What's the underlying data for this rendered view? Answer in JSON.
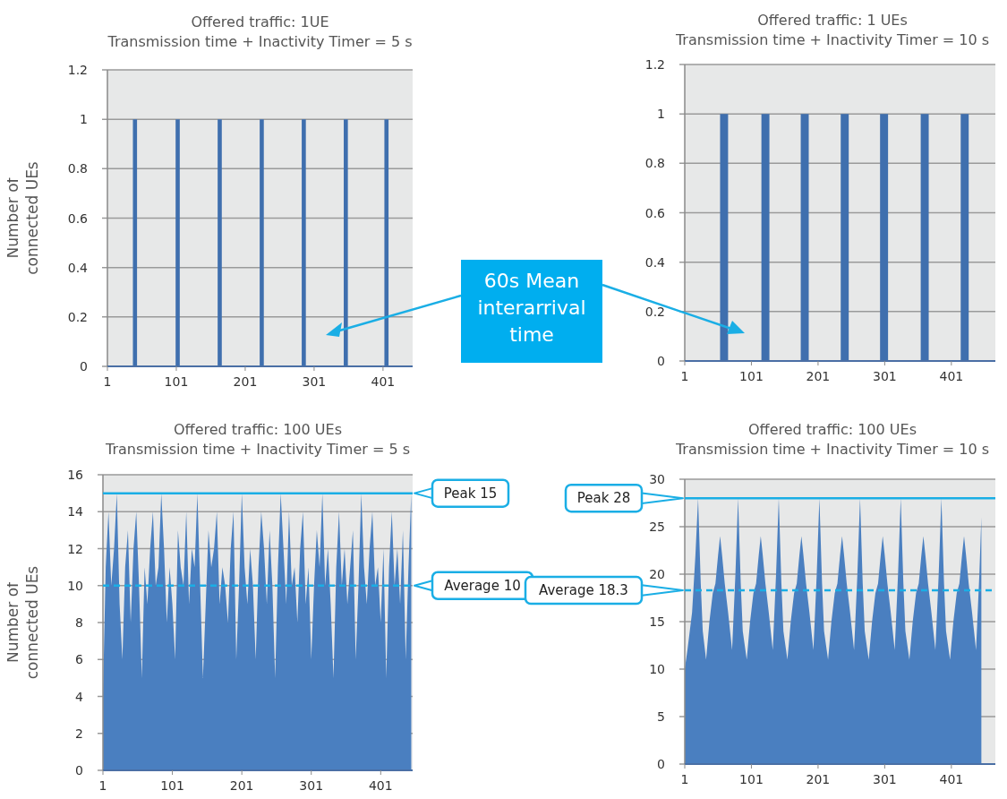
{
  "chart_data": [
    {
      "type": "area",
      "title": "Offered traffic: 1UE",
      "subtitle": "Transmission time + Inactivity Timer = 5 s",
      "ylabel": "Number of connected UEs",
      "xlim": [
        1,
        444
      ],
      "xticks": [
        1,
        101,
        201,
        301,
        401
      ],
      "ylim": [
        0,
        1.2
      ],
      "yticks": [
        0,
        0.2,
        0.4,
        0.6,
        0.8,
        1,
        1.2
      ],
      "grid": "y",
      "annotations": [
        "60s Mean interarrival time"
      ],
      "x": [
        1,
        38,
        38,
        44,
        44,
        100,
        100,
        106,
        106,
        161,
        161,
        167,
        167,
        222,
        222,
        228,
        228,
        283,
        283,
        289,
        289,
        344,
        344,
        350,
        350,
        403,
        403,
        409,
        409,
        444
      ],
      "series": [
        {
          "color": "#3f6fae",
          "values": [
            0,
            0,
            1,
            1,
            0,
            0,
            1,
            1,
            0,
            0,
            1,
            1,
            0,
            0,
            1,
            1,
            0,
            0,
            1,
            1,
            0,
            0,
            1,
            1,
            0,
            0,
            1,
            1,
            0,
            0
          ]
        }
      ]
    },
    {
      "type": "area",
      "title": "Offered traffic: 1 UEs",
      "subtitle": "Transmission time + Inactivity Timer = 10 s",
      "xlim": [
        1,
        467
      ],
      "xticks": [
        1,
        101,
        201,
        301,
        401
      ],
      "ylim": [
        0,
        1.2
      ],
      "yticks": [
        0,
        0.2,
        0.4,
        0.6,
        0.8,
        1,
        1.2
      ],
      "grid": "y",
      "x": [
        1,
        54,
        54,
        66,
        66,
        116,
        116,
        128,
        128,
        175,
        175,
        187,
        187,
        235,
        235,
        247,
        247,
        294,
        294,
        306,
        306,
        355,
        355,
        367,
        367,
        415,
        415,
        427,
        427,
        467
      ],
      "series": [
        {
          "color": "#3f6fae",
          "values": [
            0,
            0,
            1,
            1,
            0,
            0,
            1,
            1,
            0,
            0,
            1,
            1,
            0,
            0,
            1,
            1,
            0,
            0,
            1,
            1,
            0,
            0,
            1,
            1,
            0,
            0,
            1,
            1,
            0,
            0
          ]
        }
      ]
    },
    {
      "type": "area",
      "title": "Offered traffic: 100 UEs",
      "subtitle": "Transmission time + Inactivity Timer = 5 s",
      "ylabel": "Number of connected UEs",
      "xlim": [
        1,
        447
      ],
      "xticks": [
        1,
        101,
        201,
        301,
        401
      ],
      "ylim": [
        0,
        16
      ],
      "yticks": [
        0,
        2,
        4,
        6,
        8,
        10,
        12,
        14,
        16
      ],
      "grid": "y",
      "x": [
        1,
        5,
        9,
        13,
        17,
        21,
        25,
        29,
        33,
        37,
        41,
        45,
        49,
        53,
        57,
        61,
        65,
        69,
        73,
        77,
        81,
        85,
        89,
        93,
        97,
        101,
        105,
        109,
        113,
        117,
        121,
        125,
        129,
        133,
        137,
        141,
        145,
        149,
        153,
        157,
        161,
        165,
        169,
        173,
        177,
        181,
        185,
        189,
        193,
        197,
        201,
        205,
        209,
        213,
        217,
        221,
        225,
        229,
        233,
        237,
        241,
        245,
        249,
        253,
        257,
        261,
        265,
        269,
        273,
        277,
        281,
        285,
        289,
        293,
        297,
        301,
        305,
        309,
        313,
        317,
        321,
        325,
        329,
        333,
        337,
        341,
        345,
        349,
        353,
        357,
        361,
        365,
        369,
        373,
        377,
        381,
        385,
        389,
        393,
        397,
        401,
        405,
        409,
        413,
        417,
        421,
        425,
        429,
        433,
        437,
        441,
        445
      ],
      "series": [
        {
          "color": "#4a7fc0",
          "values": [
            4,
            11,
            14,
            10,
            12,
            15,
            9,
            6,
            11,
            13,
            8,
            12,
            14,
            10,
            5,
            11,
            9,
            12,
            14,
            10,
            11,
            15,
            12,
            8,
            11,
            9,
            6,
            13,
            11,
            10,
            14,
            9,
            12,
            11,
            15,
            10,
            5,
            9,
            13,
            11,
            12,
            14,
            9,
            11,
            10,
            8,
            12,
            14,
            6,
            10,
            15,
            11,
            9,
            12,
            10,
            6,
            11,
            14,
            12,
            9,
            13,
            10,
            5,
            11,
            15,
            12,
            9,
            14,
            10,
            11,
            8,
            12,
            14,
            9,
            11,
            6,
            10,
            13,
            11,
            15,
            10,
            12,
            9,
            5,
            11,
            14,
            10,
            12,
            9,
            11,
            13,
            6,
            10,
            15,
            11,
            9,
            12,
            14,
            10,
            11,
            8,
            12,
            5,
            11,
            14,
            10,
            12,
            9,
            13,
            6,
            11,
            15
          ]
        }
      ],
      "ref_lines": [
        {
          "axis": "y",
          "value": 15,
          "label": "Peak 15",
          "color": "#1aaee5",
          "line_style": "solid"
        },
        {
          "axis": "y",
          "value": 10,
          "label": "Average 10",
          "color": "#1aaee5",
          "line_style": "dashed"
        }
      ]
    },
    {
      "type": "area",
      "title": "Offered traffic: 100 UEs",
      "subtitle": "Transmission time + Inactivity Timer = 10 s",
      "xlim": [
        1,
        467
      ],
      "xticks": [
        1,
        101,
        201,
        301,
        401
      ],
      "ylim": [
        0,
        30
      ],
      "yticks": [
        0,
        5,
        10,
        15,
        20,
        25,
        30
      ],
      "grid": "y",
      "x": [
        1,
        5,
        12,
        17,
        21,
        25,
        28,
        33,
        38,
        43,
        47,
        51,
        54,
        57,
        61,
        66,
        72,
        77,
        81,
        85,
        88,
        94,
        99,
        104,
        108,
        112,
        115,
        118,
        122,
        127,
        133,
        138,
        142,
        146,
        149,
        155,
        160,
        165,
        169,
        173,
        176,
        179,
        183,
        188,
        194,
        199,
        203,
        207,
        210,
        216,
        221,
        226,
        230,
        234,
        237,
        240,
        244,
        249,
        255,
        260,
        264,
        268,
        271,
        277,
        282,
        287,
        291,
        295,
        298,
        301,
        305,
        310,
        316,
        321,
        325,
        329,
        332,
        338,
        343,
        348,
        352,
        356,
        359,
        362,
        366,
        371,
        377,
        382,
        386,
        390,
        393,
        399,
        404,
        409,
        413,
        417,
        420,
        423,
        427,
        432,
        438,
        443,
        446
      ],
      "series": [
        {
          "color": "#4a7fc0",
          "values": [
            10,
            12,
            16,
            22,
            28,
            19,
            14,
            11,
            15,
            18,
            19,
            22,
            24,
            22,
            19,
            16,
            12,
            20,
            28,
            19,
            14,
            11,
            15,
            18,
            19,
            22,
            24,
            22,
            19,
            16,
            12,
            20,
            28,
            19,
            14,
            11,
            15,
            18,
            19,
            22,
            24,
            22,
            19,
            16,
            12,
            20,
            28,
            19,
            14,
            11,
            15,
            18,
            19,
            22,
            24,
            22,
            19,
            16,
            12,
            20,
            28,
            19,
            14,
            11,
            15,
            18,
            19,
            22,
            24,
            22,
            19,
            16,
            12,
            20,
            28,
            19,
            14,
            11,
            15,
            18,
            19,
            22,
            24,
            22,
            19,
            16,
            12,
            20,
            28,
            19,
            14,
            11,
            15,
            18,
            19,
            22,
            24,
            22,
            19,
            16,
            12,
            20,
            26
          ]
        }
      ],
      "ref_lines": [
        {
          "axis": "y",
          "value": 28,
          "label": "Peak 28",
          "color": "#1aaee5",
          "line_style": "solid"
        },
        {
          "axis": "y",
          "value": 18.3,
          "label": "Average 18.3",
          "color": "#1aaee5",
          "line_style": "dashed"
        }
      ]
    }
  ]
}
